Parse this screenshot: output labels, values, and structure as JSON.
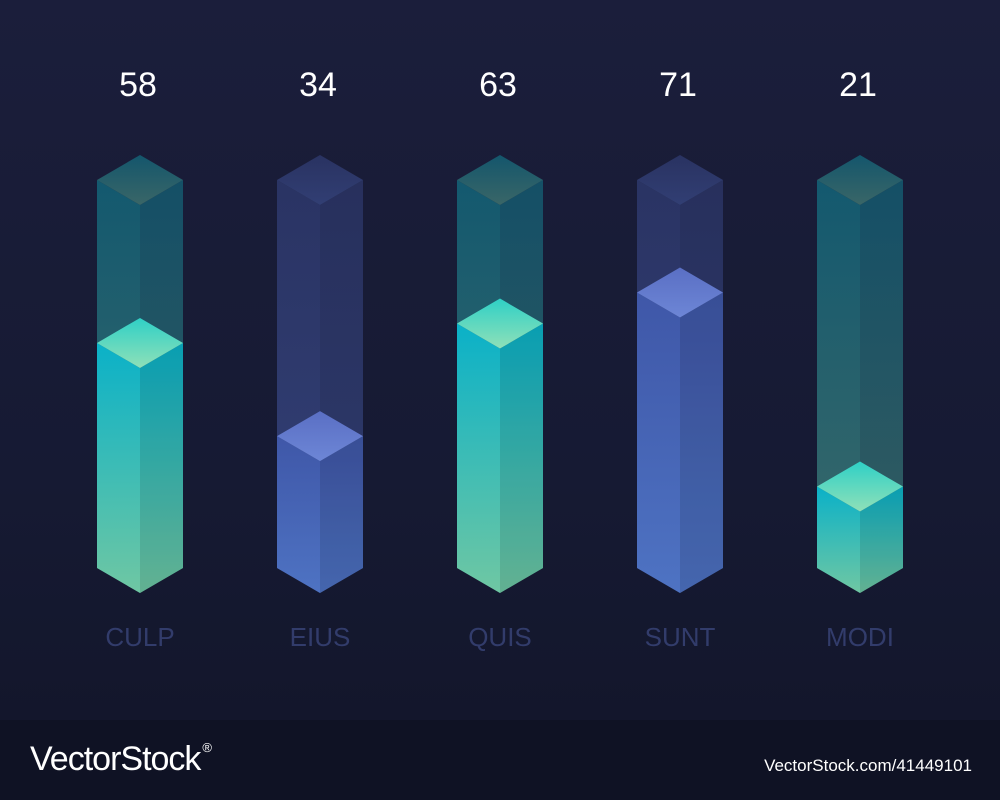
{
  "chart_data": {
    "type": "bar",
    "style": "isometric-3d",
    "categories": [
      "CULP",
      "EIUS",
      "QUIS",
      "SUNT",
      "MODI"
    ],
    "values": [
      58,
      34,
      63,
      71,
      21
    ],
    "ylim": [
      0,
      100
    ],
    "title": "",
    "xlabel": "",
    "ylabel": "",
    "grid": false,
    "legend": "none",
    "colors": {
      "teal_top": "#0ab1c8",
      "teal_bottom": "#6fc7a3",
      "blue_top": "#3f57a8",
      "blue_bottom": "#4e73c3",
      "label": "#323c6b",
      "value": "#ffffff"
    },
    "bar_colors": [
      "teal",
      "blue",
      "teal",
      "blue",
      "teal"
    ]
  },
  "watermark": {
    "brand": "VectorStock",
    "registered": "®",
    "id": "VectorStock.com/41449101"
  }
}
